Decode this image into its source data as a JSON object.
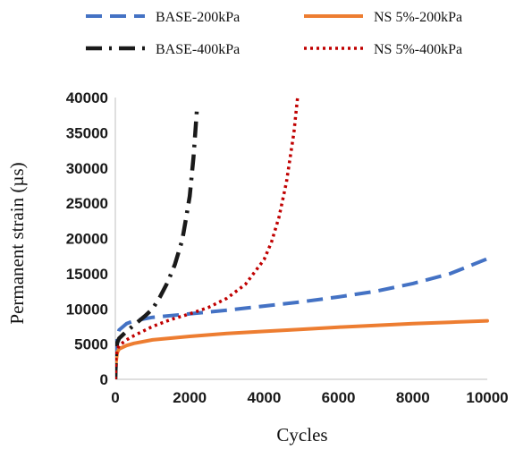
{
  "chart_data": {
    "type": "line",
    "title": "",
    "xlabel": "Cycles",
    "ylabel": "Permanent strain (µs)",
    "xlim": [
      0,
      10000
    ],
    "ylim": [
      0,
      40000
    ],
    "xticks": [
      0,
      2000,
      4000,
      6000,
      8000,
      10000
    ],
    "xtick_labels": [
      "0",
      "2000",
      "4000",
      "6000",
      "8000",
      "10000"
    ],
    "yticks": [
      0,
      5000,
      10000,
      15000,
      20000,
      25000,
      30000,
      35000,
      40000
    ],
    "ytick_labels": [
      "0",
      "5000",
      "10000",
      "15000",
      "20000",
      "25000",
      "30000",
      "35000",
      "40000"
    ],
    "grid": false,
    "legend_placement": "top",
    "series": [
      {
        "name": "BASE-200kPa",
        "color": "#4472c4",
        "style": "dashed",
        "x": [
          0,
          50,
          100,
          300,
          500,
          1000,
          2000,
          3000,
          4000,
          5000,
          6000,
          7000,
          8000,
          9000,
          10000
        ],
        "y": [
          0,
          6100,
          7000,
          7900,
          8300,
          8800,
          9300,
          9800,
          10400,
          11000,
          11700,
          12500,
          13600,
          15000,
          17100
        ]
      },
      {
        "name": "NS 5%-200kPa",
        "color": "#ed7d31",
        "style": "solid",
        "x": [
          0,
          20,
          50,
          100,
          300,
          500,
          1000,
          2000,
          3000,
          4000,
          5000,
          6000,
          7000,
          8000,
          9000,
          10000
        ],
        "y": [
          0,
          2500,
          3800,
          4300,
          4800,
          5100,
          5600,
          6100,
          6500,
          6800,
          7100,
          7400,
          7650,
          7900,
          8100,
          8300
        ]
      },
      {
        "name": "BASE-400kPa",
        "color": "#1a1a1a",
        "style": "dashdot",
        "x": [
          0,
          20,
          50,
          100,
          300,
          500,
          800,
          1000,
          1200,
          1400,
          1600,
          1800,
          1900,
          2000,
          2100,
          2150,
          2200
        ],
        "y": [
          0,
          4000,
          5200,
          5800,
          6800,
          7700,
          9000,
          10000,
          11700,
          13700,
          16300,
          19800,
          22800,
          26000,
          31500,
          35000,
          38800
        ]
      },
      {
        "name": "NS 5%-400kPa",
        "color": "#c00000",
        "style": "dotted",
        "x": [
          0,
          20,
          50,
          100,
          300,
          500,
          1000,
          1500,
          2000,
          2500,
          3000,
          3500,
          4000,
          4200,
          4400,
          4600,
          4800,
          4900
        ],
        "y": [
          0,
          3000,
          4200,
          4800,
          5600,
          6200,
          7500,
          8500,
          9300,
          10200,
          11500,
          13500,
          17000,
          19500,
          23000,
          28000,
          35000,
          40000
        ]
      }
    ]
  }
}
